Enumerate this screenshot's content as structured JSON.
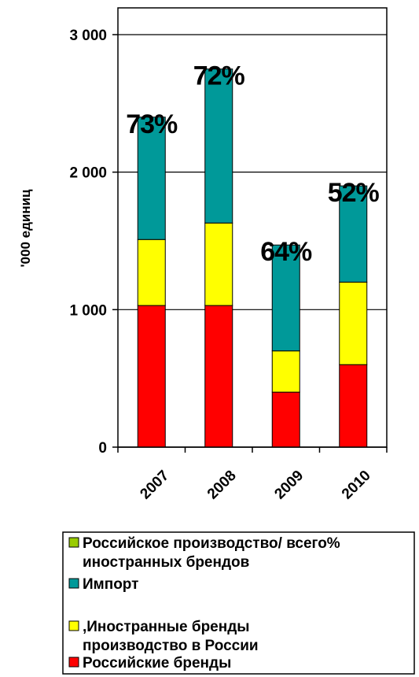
{
  "chart_data": {
    "type": "bar",
    "stacked": true,
    "ylabel": "'000 единиц",
    "ylim": [
      0,
      3000
    ],
    "yticks": [
      "0",
      "1 000",
      "2 000",
      "3 000"
    ],
    "ytick_values": [
      0,
      1000,
      2000,
      3000
    ],
    "categories": [
      "2007",
      "2008",
      "2009",
      "2010"
    ],
    "series": [
      {
        "name": "Российские бренды",
        "color": "#ff0000",
        "values": [
          1030,
          1030,
          400,
          600
        ]
      },
      {
        "name": ",Иностранные бренды производство в России",
        "color": "#ffff00",
        "values": [
          480,
          600,
          300,
          600
        ]
      },
      {
        "name": "Импорт",
        "color": "#009999",
        "values": [
          890,
          1120,
          770,
          700
        ]
      }
    ],
    "percent_labels": [
      "73%",
      "72%",
      "64%",
      "52%"
    ],
    "legend": [
      {
        "label_lines": [
          "Российское производство/ всего%",
          "иностранных брендов"
        ],
        "color": "#99cc00"
      },
      {
        "label_lines": [
          "Импорт"
        ],
        "color": "#009999"
      },
      {
        "label_lines": [
          ",Иностранные бренды",
          "производство в России"
        ],
        "color": "#ffff00"
      },
      {
        "label_lines": [
          "Российские бренды"
        ],
        "color": "#ff0000"
      }
    ],
    "grid": true,
    "legend_position": "bottom"
  }
}
